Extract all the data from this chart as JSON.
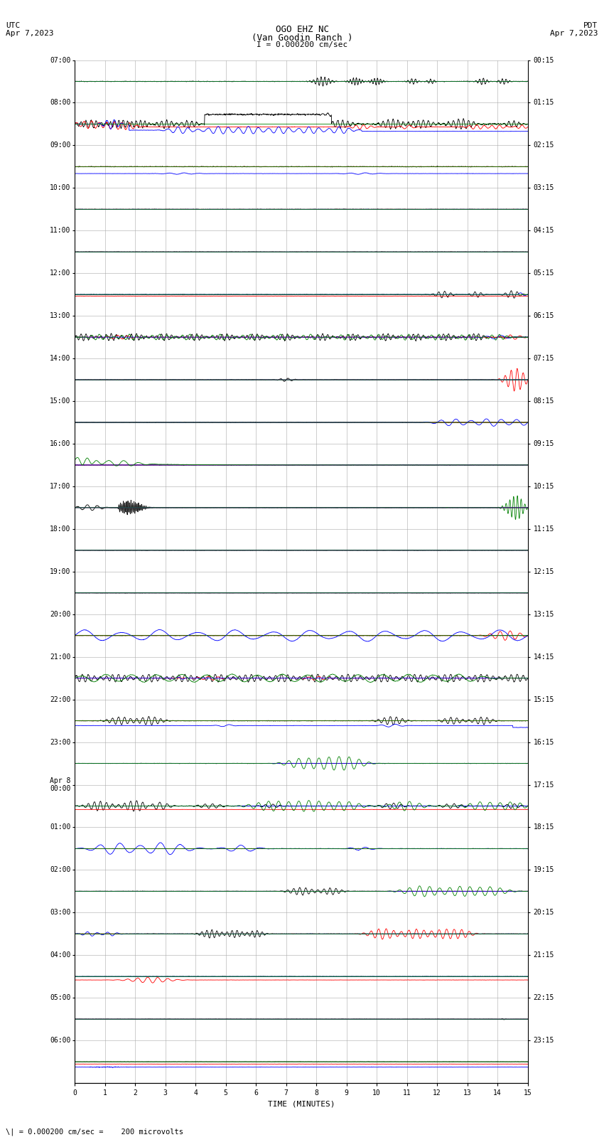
{
  "title_line1": "OGO EHZ NC",
  "title_line2": "(Van Goodin Ranch )",
  "scale_label": "I = 0.000200 cm/sec",
  "utc_label": "UTC\nApr 7,2023",
  "pdt_label": "PDT\nApr 7,2023",
  "bottom_label": "\\| = 0.000200 cm/sec =    200 microvolts",
  "xlabel": "TIME (MINUTES)",
  "left_times": [
    "07:00",
    "08:00",
    "09:00",
    "10:00",
    "11:00",
    "12:00",
    "13:00",
    "14:00",
    "15:00",
    "16:00",
    "17:00",
    "18:00",
    "19:00",
    "20:00",
    "21:00",
    "22:00",
    "23:00",
    "Apr 8\n00:00",
    "01:00",
    "02:00",
    "03:00",
    "04:00",
    "05:00",
    "06:00"
  ],
  "right_times": [
    "00:15",
    "01:15",
    "02:15",
    "03:15",
    "04:15",
    "05:15",
    "06:15",
    "07:15",
    "08:15",
    "09:15",
    "10:15",
    "11:15",
    "12:15",
    "13:15",
    "14:15",
    "15:15",
    "16:15",
    "17:15",
    "18:15",
    "19:15",
    "20:15",
    "21:15",
    "22:15",
    "23:15"
  ],
  "n_rows": 24,
  "n_minutes": 15,
  "bg_color": "#ffffff",
  "grid_color": "#aaaaaa",
  "title_fontsize": 9,
  "label_fontsize": 8,
  "tick_fontsize": 7
}
